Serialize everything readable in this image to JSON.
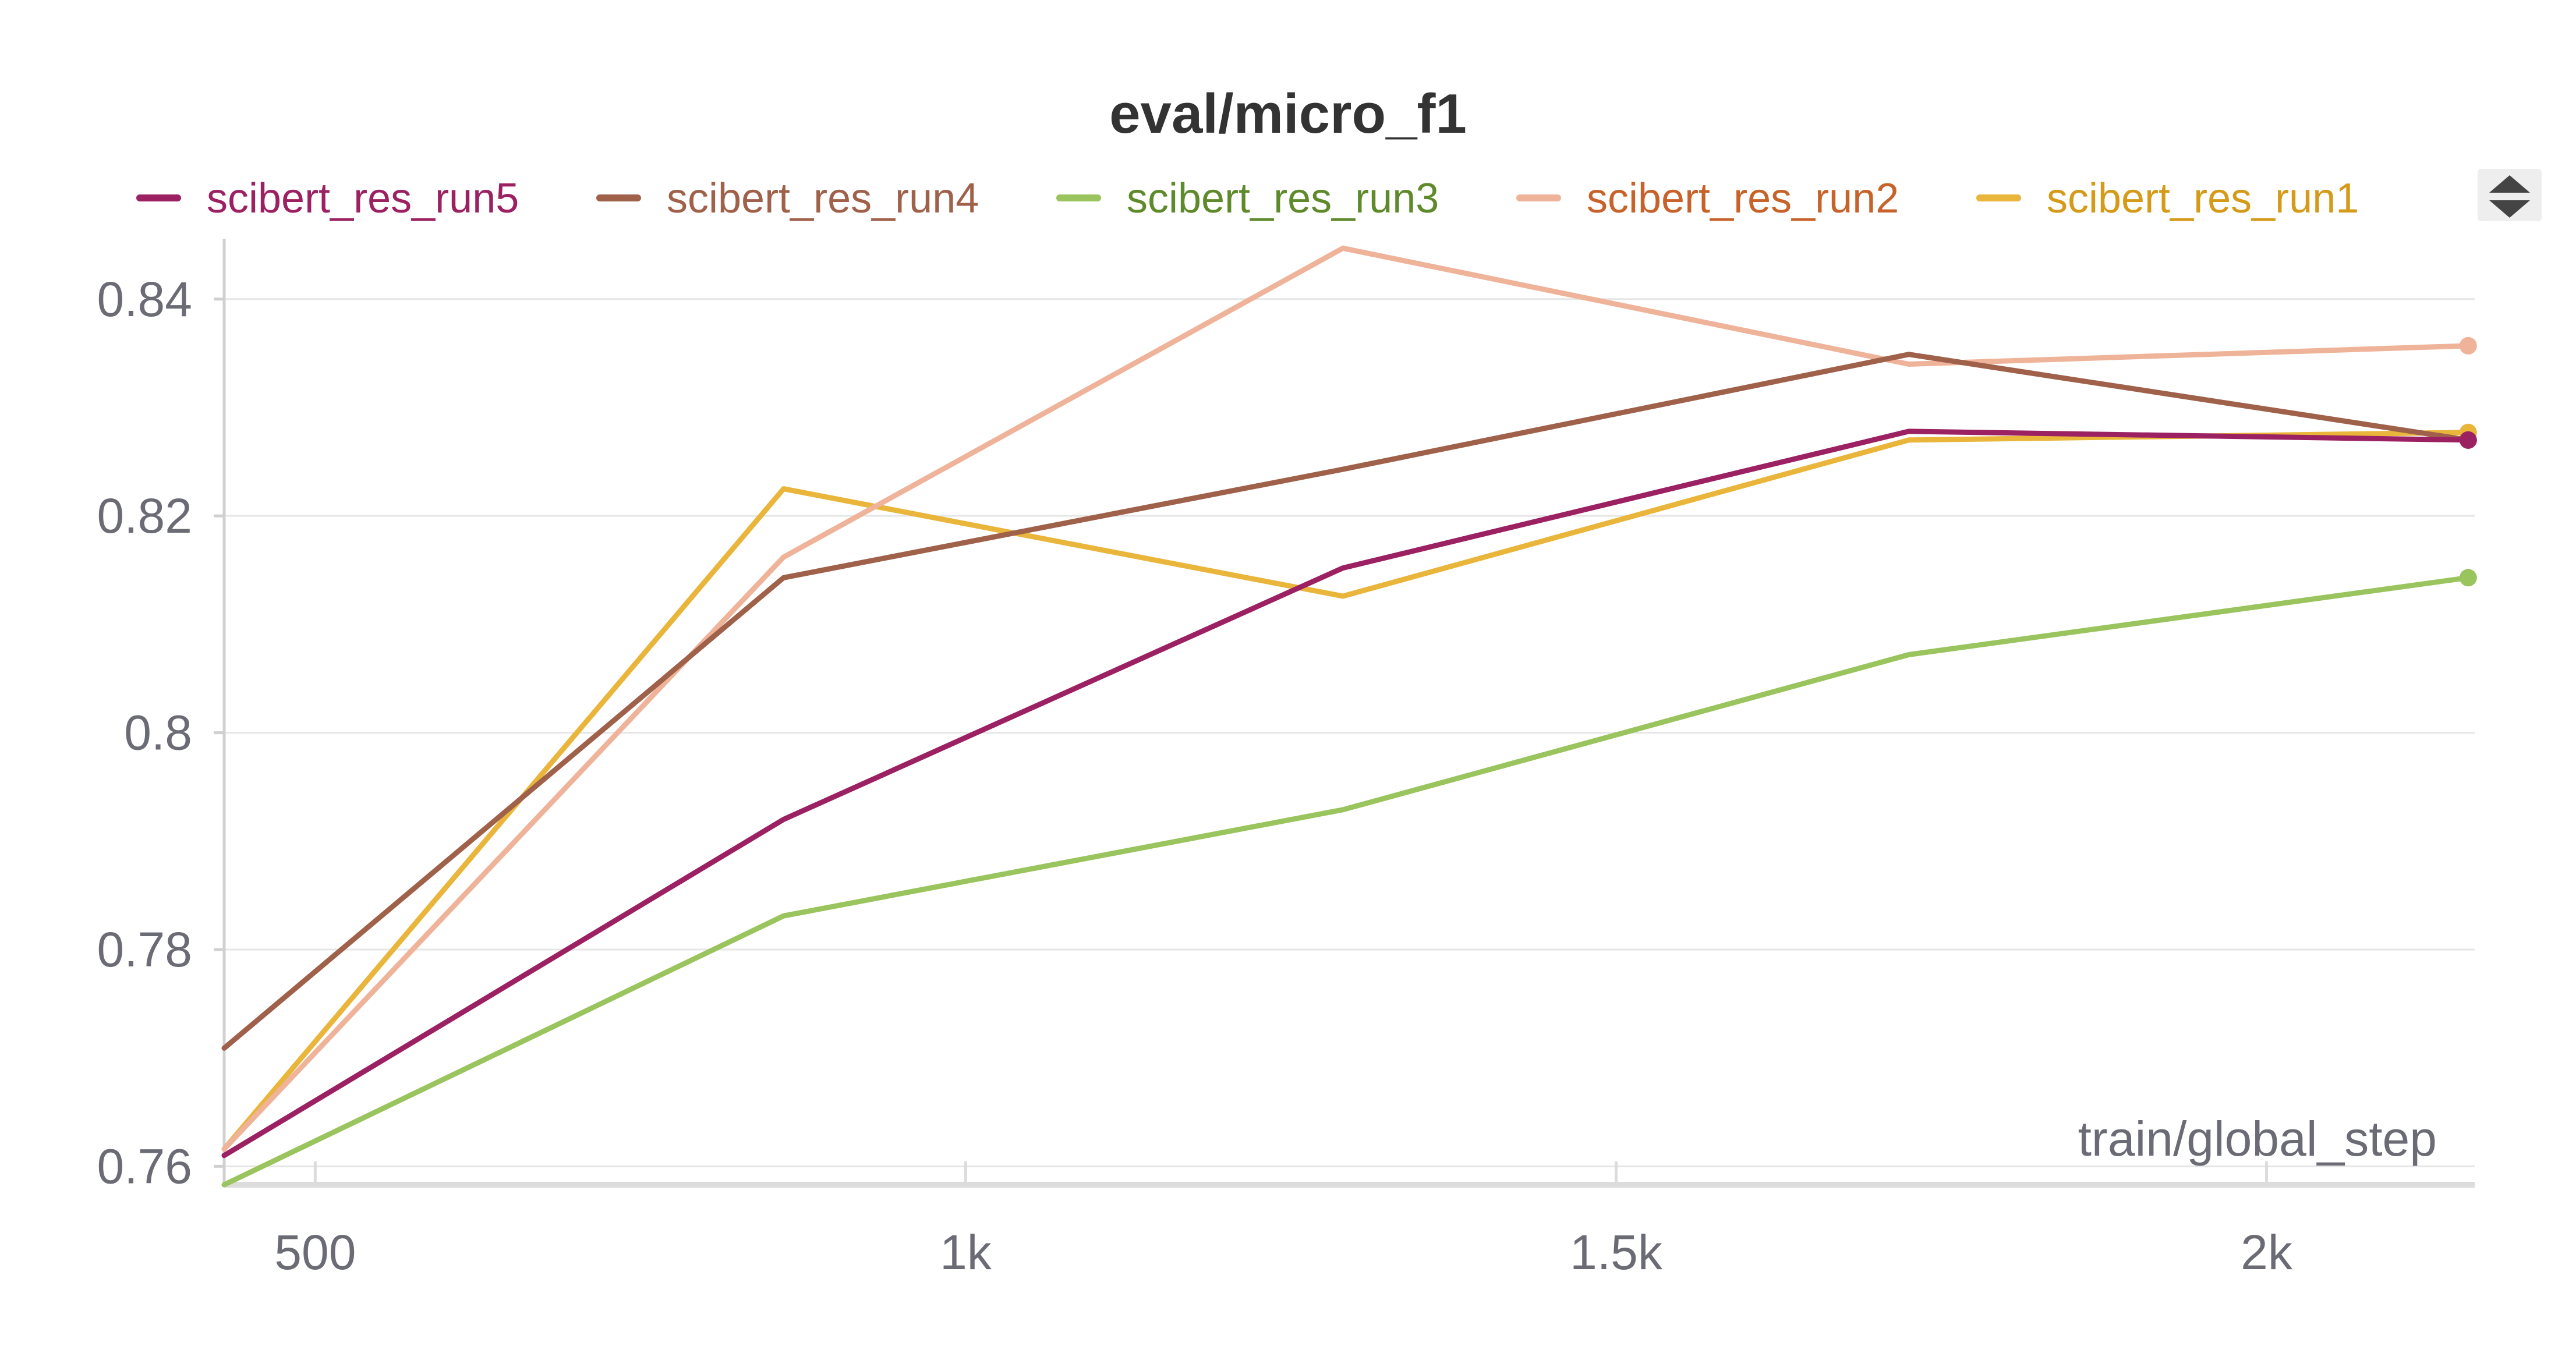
{
  "chart_data": {
    "type": "line",
    "title": "eval/micro_f1",
    "xlabel": "train/global_step",
    "ylabel": "",
    "xlim": [
      430,
      2160
    ],
    "ylim": [
      0.7583,
      0.8445
    ],
    "x_ticks": [
      500,
      1000,
      1500,
      2000
    ],
    "x_tick_labels": [
      "500",
      "1k",
      "1.5k",
      "2k"
    ],
    "y_ticks": [
      0.76,
      0.78,
      0.8,
      0.82,
      0.84
    ],
    "y_tick_labels": [
      "0.76",
      "0.78",
      "0.8",
      "0.82",
      "0.84"
    ],
    "grid": true,
    "legend_position": "top",
    "x": [
      430,
      860,
      1290,
      1725,
      2155
    ],
    "series": [
      {
        "name": "scibert_res_run5",
        "color": "#9c2162",
        "label_color": "#9c2162",
        "values": [
          0.761,
          0.792,
          0.8152,
          0.8278,
          0.827
        ]
      },
      {
        "name": "scibert_res_run4",
        "color": "#a0614a",
        "label_color": "#a0614a",
        "values": [
          0.7709,
          0.8143,
          0.8243,
          0.8349,
          0.827
        ]
      },
      {
        "name": "scibert_res_run3",
        "color": "#9ac45d",
        "label_color": "#5f8a2c",
        "values": [
          0.7583,
          0.7831,
          0.7929,
          0.8072,
          0.8143
        ]
      },
      {
        "name": "scibert_res_run2",
        "color": "#efb39a",
        "label_color": "#c7632a",
        "values": [
          0.7616,
          0.8162,
          0.8447,
          0.834,
          0.8357
        ]
      },
      {
        "name": "scibert_res_run1",
        "color": "#e9b53a",
        "label_color": "#d49a18",
        "values": [
          0.7616,
          0.8225,
          0.8126,
          0.827,
          0.8277
        ]
      }
    ]
  }
}
